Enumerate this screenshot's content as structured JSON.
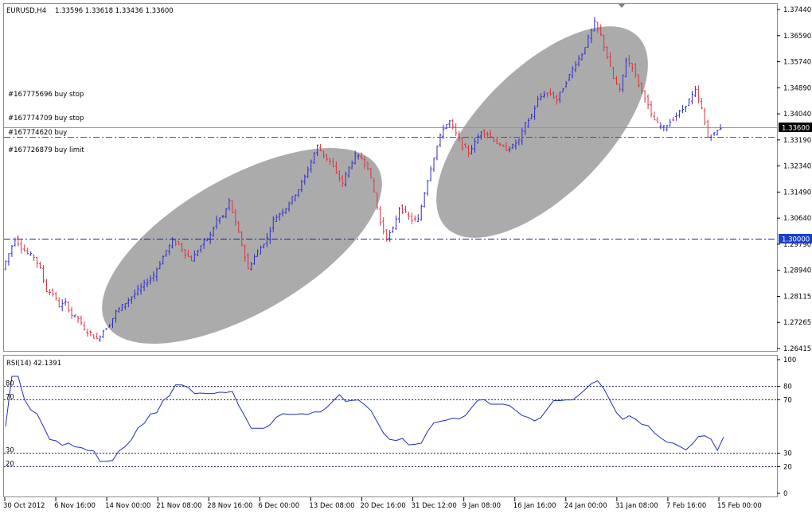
{
  "chart_header": {
    "symbol_timeframe": "EURUSD,H4",
    "ohlc": "1.33596 1.33618 1.33436 1.33600"
  },
  "orders": [
    {
      "label": "#167775696 buy stop"
    },
    {
      "label": "#167774709 buy stop"
    },
    {
      "label": "#167774620 buy"
    },
    {
      "label": "#167726879 buy limit"
    }
  ],
  "price_axis": {
    "ticks": [
      "1.37440",
      "1.36590",
      "1.35740",
      "1.34890",
      "1.34040",
      "1.33190",
      "1.32340",
      "1.31490",
      "1.30640",
      "1.29790",
      "1.28940",
      "1.28115",
      "1.27265",
      "1.26415"
    ],
    "current_price_label": "1.33600",
    "level_label": "1.30000"
  },
  "indicator": {
    "title": "RSI(14) 42.1391",
    "axis_ticks": [
      "100",
      "80",
      "70",
      "30",
      "20",
      "0"
    ],
    "left_level_labels": [
      "80",
      "70",
      "30",
      "20"
    ]
  },
  "time_axis": {
    "labels": [
      "30 Oct 2012",
      "6 Nov 16:00",
      "14 Nov 00:00",
      "21 Nov 08:00",
      "28 Nov 16:00",
      "6 Dec 00:00",
      "13 Dec 08:00",
      "20 Dec 16:00",
      "31 Dec 12:00",
      "9 Jan 08:00",
      "16 Jan 16:00",
      "24 Jan 00:00",
      "31 Jan 08:00",
      "7 Feb 16:00",
      "15 Feb 00:00"
    ]
  },
  "colors": {
    "bull_bar": "#2b2bcf",
    "bear_bar": "#e0303a",
    "rsi_line": "#1f2fbf",
    "current_price_line": "#8a96a8",
    "red_level": "#d4202a",
    "blue_level": "#1a2a9c",
    "channel_ellipse": "#ababab"
  },
  "chart_data": {
    "type": "candlestick",
    "title": "EURUSD,H4",
    "ylim": [
      1.26415,
      1.3744
    ],
    "current_price": 1.336,
    "horizontal_levels": [
      1.336,
      1.3325,
      1.3
    ],
    "close_series": [
      1.29,
      1.295,
      1.3,
      1.297,
      1.295,
      1.294,
      1.29,
      1.283,
      1.282,
      1.278,
      1.279,
      1.275,
      1.274,
      1.27,
      1.269,
      1.267,
      1.27,
      1.272,
      1.276,
      1.278,
      1.28,
      1.282,
      1.284,
      1.286,
      1.288,
      1.292,
      1.296,
      1.299,
      1.298,
      1.295,
      1.293,
      1.296,
      1.299,
      1.301,
      1.306,
      1.307,
      1.312,
      1.305,
      1.298,
      1.29,
      1.294,
      1.297,
      1.3,
      1.306,
      1.308,
      1.31,
      1.313,
      1.316,
      1.32,
      1.325,
      1.33,
      1.327,
      1.325,
      1.321,
      1.318,
      1.323,
      1.327,
      1.326,
      1.323,
      1.315,
      1.305,
      1.3,
      1.303,
      1.31,
      1.308,
      1.306,
      1.306,
      1.315,
      1.323,
      1.33,
      1.336,
      1.338,
      1.334,
      1.33,
      1.328,
      1.331,
      1.335,
      1.334,
      1.332,
      1.33,
      1.329,
      1.33,
      1.332,
      1.337,
      1.34,
      1.345,
      1.347,
      1.347,
      1.345,
      1.349,
      1.353,
      1.357,
      1.36,
      1.365,
      1.37,
      1.366,
      1.359,
      1.352,
      1.348,
      1.358,
      1.356,
      1.35,
      1.346,
      1.34,
      1.337,
      1.336,
      1.338,
      1.34,
      1.342,
      1.345,
      1.348,
      1.342,
      1.333,
      1.334,
      1.336
    ],
    "rsi": {
      "name": "RSI(14)",
      "last_value": 42.1391,
      "levels": [
        80,
        70,
        30,
        20
      ],
      "ylim": [
        0,
        100
      ]
    }
  }
}
